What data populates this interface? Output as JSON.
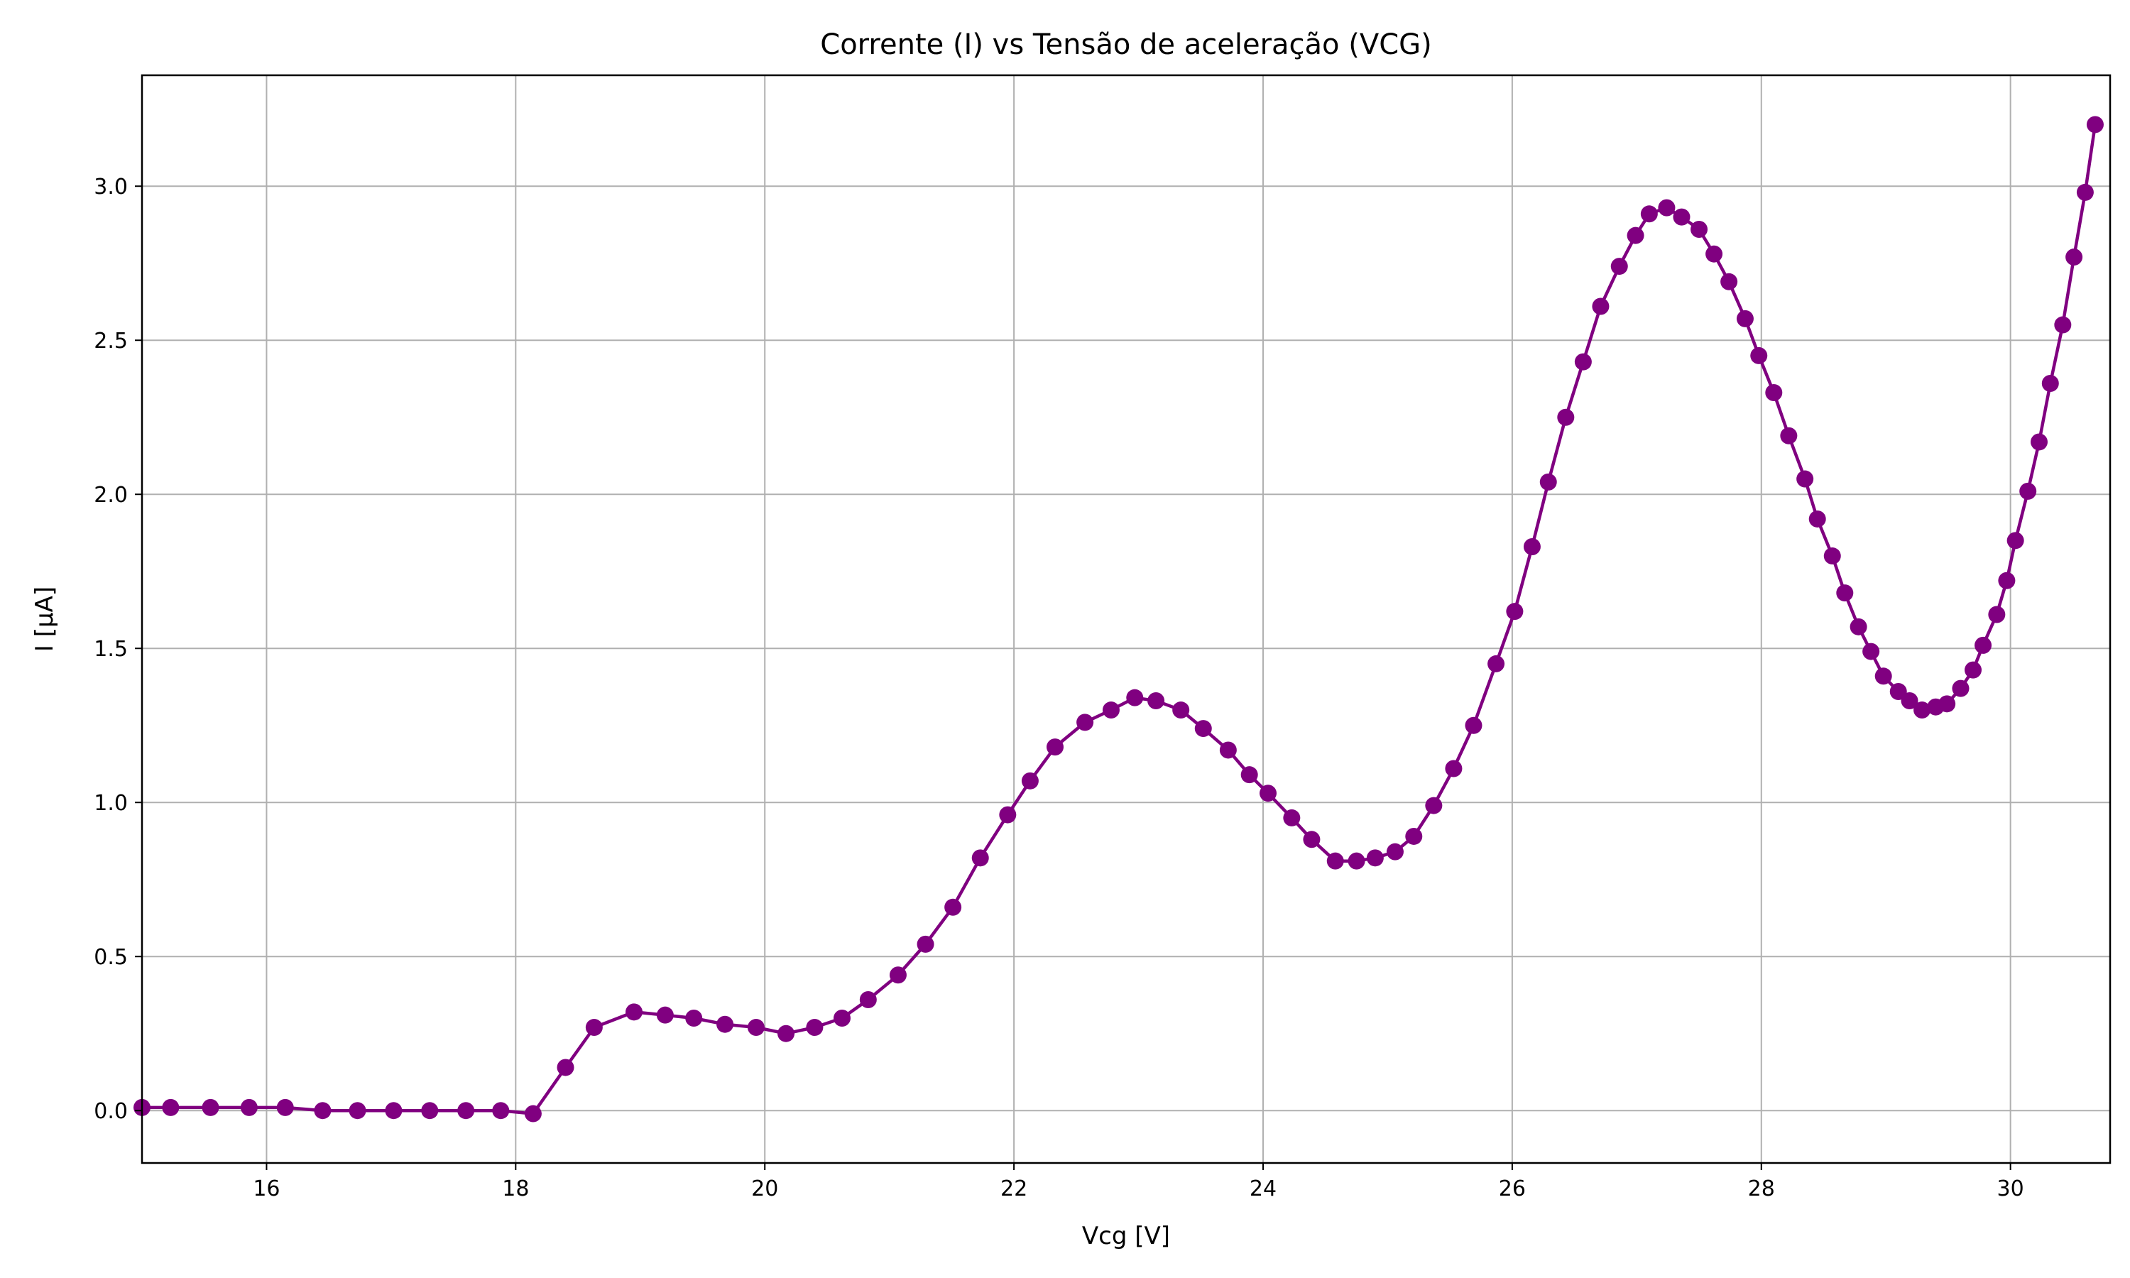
{
  "chart_data": {
    "type": "line",
    "title": "Corrente (I) vs Tensão de aceleração (VCG)",
    "xlabel": "Vcg [V]",
    "ylabel": "I [µA]",
    "xlim": [
      15.0,
      30.8
    ],
    "ylim": [
      -0.17,
      3.36
    ],
    "grid": true,
    "x_ticks": [
      16,
      18,
      20,
      22,
      24,
      26,
      28,
      30
    ],
    "x_tick_labels": [
      "16",
      "18",
      "20",
      "22",
      "24",
      "26",
      "28",
      "30"
    ],
    "y_ticks": [
      0.0,
      0.5,
      1.0,
      1.5,
      2.0,
      2.5,
      3.0
    ],
    "y_tick_labels": [
      "0.0",
      "0.5",
      "1.0",
      "1.5",
      "2.0",
      "2.5",
      "3.0"
    ],
    "colors": {
      "series": "#800080"
    },
    "series": [
      {
        "x": [
          15.0,
          15.23,
          15.55,
          15.86,
          16.15,
          16.45,
          16.73,
          17.02,
          17.31,
          17.6,
          17.88,
          18.14,
          18.4,
          18.63,
          18.95,
          19.2,
          19.43,
          19.68,
          19.93,
          20.17,
          20.4,
          20.62,
          20.83,
          21.07,
          21.29,
          21.51,
          21.73,
          21.95,
          22.13,
          22.33,
          22.57,
          22.78,
          22.97,
          23.14,
          23.34,
          23.52,
          23.72,
          23.89,
          24.04,
          24.23,
          24.39,
          24.58,
          24.75,
          24.9,
          25.06,
          25.21,
          25.37,
          25.53,
          25.69,
          25.87,
          26.02,
          26.16,
          26.29,
          26.43,
          26.57,
          26.71,
          26.86,
          26.99,
          27.1,
          27.24,
          27.36,
          27.5,
          27.62,
          27.74,
          27.87,
          27.98,
          28.1,
          28.22,
          28.35,
          28.45,
          28.57,
          28.67,
          28.78,
          28.88,
          28.98,
          29.1,
          29.19,
          29.29,
          29.4,
          29.49,
          29.6,
          29.7,
          29.78,
          29.89,
          29.97,
          30.04,
          30.14,
          30.23,
          30.32,
          30.42,
          30.51,
          30.6,
          30.68
        ],
        "values": [
          0.01,
          0.01,
          0.01,
          0.01,
          0.01,
          0.0,
          0.0,
          0.0,
          0.0,
          0.0,
          0.0,
          -0.01,
          0.14,
          0.27,
          0.32,
          0.31,
          0.3,
          0.28,
          0.27,
          0.25,
          0.27,
          0.3,
          0.36,
          0.44,
          0.54,
          0.66,
          0.82,
          0.96,
          1.07,
          1.18,
          1.26,
          1.3,
          1.34,
          1.33,
          1.3,
          1.24,
          1.17,
          1.09,
          1.03,
          0.95,
          0.88,
          0.81,
          0.81,
          0.82,
          0.84,
          0.89,
          0.99,
          1.11,
          1.25,
          1.45,
          1.62,
          1.83,
          2.04,
          2.25,
          2.43,
          2.61,
          2.74,
          2.84,
          2.91,
          2.93,
          2.9,
          2.86,
          2.78,
          2.69,
          2.57,
          2.45,
          2.33,
          2.19,
          2.05,
          1.92,
          1.8,
          1.68,
          1.57,
          1.49,
          1.41,
          1.36,
          1.33,
          1.3,
          1.31,
          1.32,
          1.37,
          1.43,
          1.51,
          1.61,
          1.72,
          1.85,
          2.01,
          2.17,
          2.36,
          2.55,
          2.77,
          2.98,
          3.2
        ]
      }
    ]
  }
}
